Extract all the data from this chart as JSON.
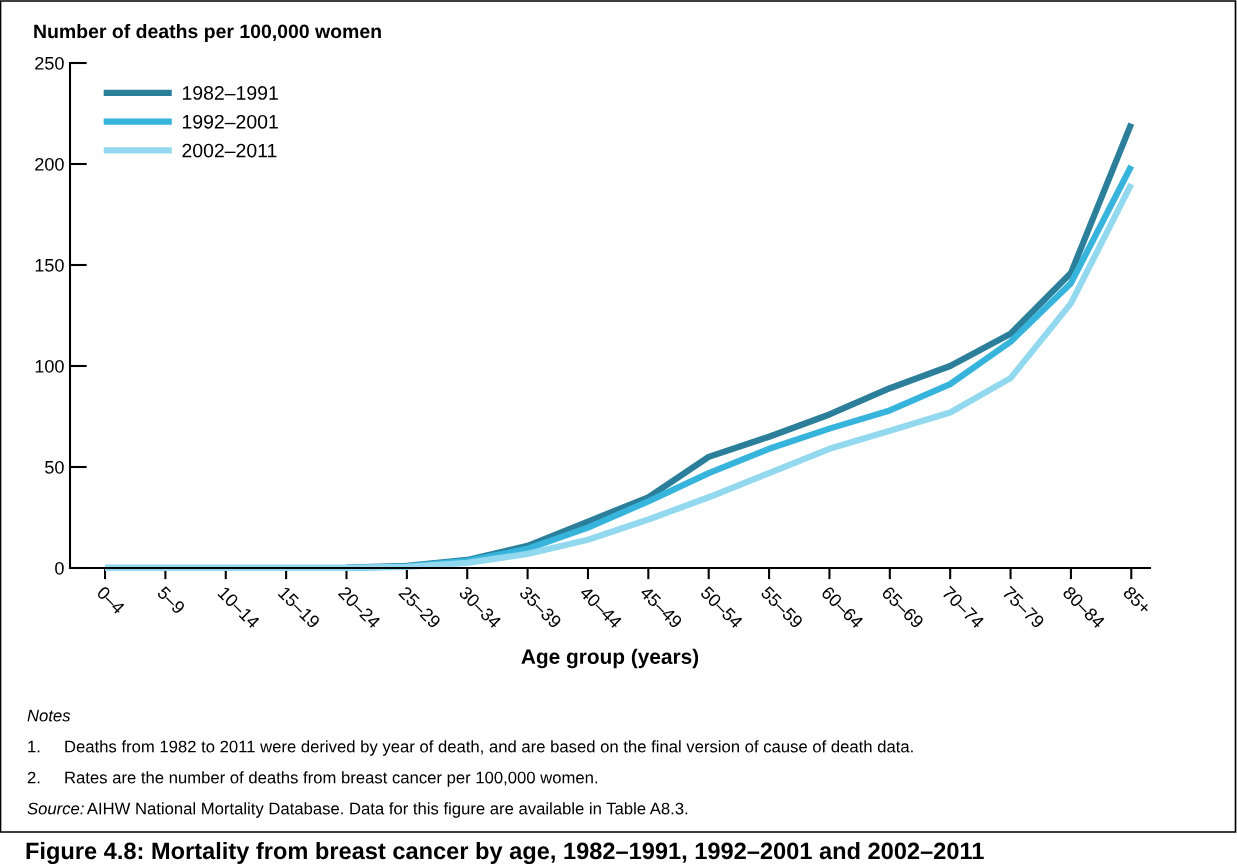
{
  "chart_data": {
    "type": "line",
    "title": "Figure 4.8: Mortality from breast cancer by age, 1982–1991, 1992–2001 and 2002–2011",
    "ylabel": "Number of deaths per 100,000 women",
    "xlabel": "Age group (years)",
    "categories": [
      "0–4",
      "5–9",
      "10–14",
      "15–19",
      "20–24",
      "25–29",
      "30–34",
      "35–39",
      "40–44",
      "45–49",
      "50–54",
      "55–59",
      "60–64",
      "65–69",
      "70–74",
      "75–79",
      "80–84",
      "85+"
    ],
    "series": [
      {
        "name": "1982–1991",
        "color": "#2b7f9a",
        "values": [
          null,
          null,
          null,
          null,
          0.2,
          1,
          4,
          11,
          23,
          35,
          55,
          65,
          76,
          89,
          100,
          116,
          146,
          220
        ]
      },
      {
        "name": "1992–2001",
        "color": "#36b4dc",
        "values": [
          0,
          0,
          0,
          0,
          0,
          0.8,
          3.5,
          9.5,
          20,
          33,
          47,
          59,
          69,
          78,
          91,
          112,
          141,
          199
        ]
      },
      {
        "name": "2002–2011",
        "color": "#92d9f0",
        "values": [
          0,
          0,
          0,
          0,
          0,
          0.5,
          2.5,
          7,
          14,
          24,
          35,
          47,
          59,
          68,
          77,
          94,
          131,
          190
        ]
      }
    ],
    "ylim": [
      0,
      250
    ],
    "yticks": [
      0,
      50,
      100,
      150,
      200,
      250
    ],
    "legend": "top left",
    "grid": false,
    "marker": "none",
    "line_style": "solid",
    "annotations": [
      "Notes",
      "1.\tDeaths from 1982 to 2011 were derived by year of death, and are based on the final version of cause of death data.",
      "2.\tRates are the number of deaths from breast cancer per 100,000 women.",
      "Source: AIHW National Mortality Database. Data for this figure are available in Table A8.3."
    ]
  }
}
